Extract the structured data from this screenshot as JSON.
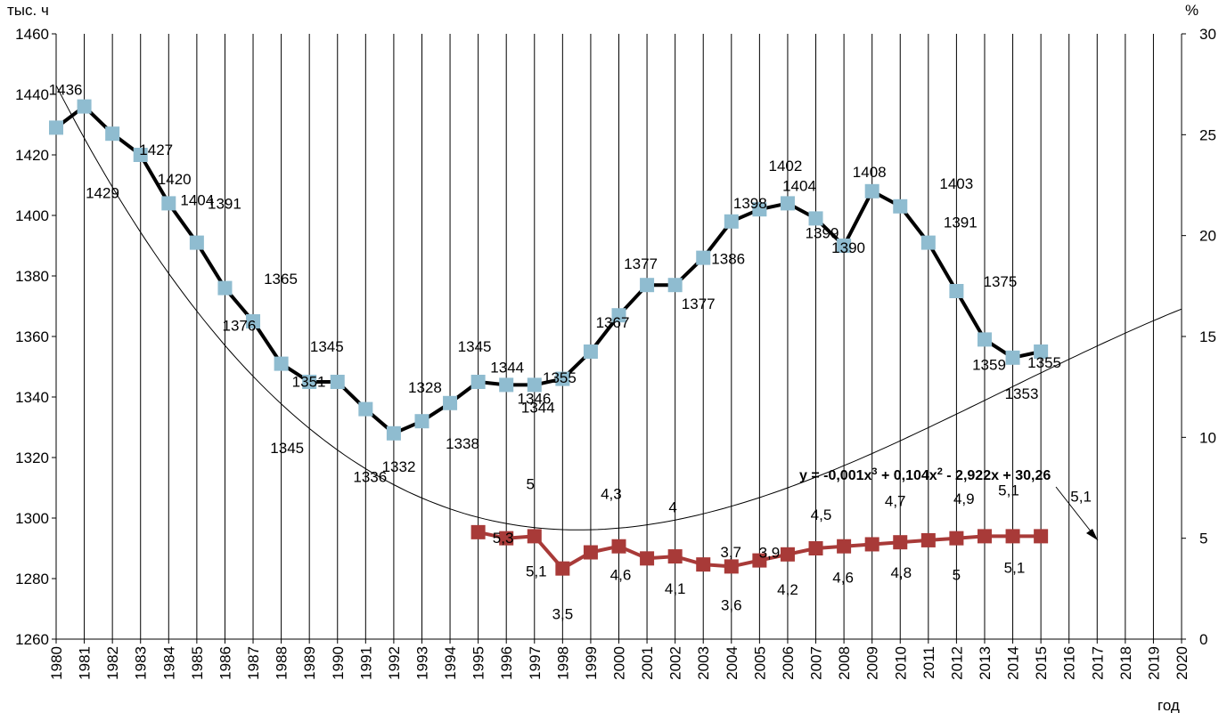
{
  "chart_data": {
    "type": "line",
    "y_left_unit": "тыс. ч",
    "y_right_unit": "%",
    "x_unit": "год",
    "x_range": [
      1980,
      2020
    ],
    "x_ticks": [
      1980,
      1981,
      1982,
      1983,
      1984,
      1985,
      1986,
      1987,
      1988,
      1989,
      1990,
      1991,
      1992,
      1993,
      1994,
      1995,
      1996,
      1997,
      1998,
      1999,
      2000,
      2001,
      2002,
      2003,
      2004,
      2005,
      2006,
      2007,
      2008,
      2009,
      2010,
      2011,
      2012,
      2013,
      2014,
      2015,
      2016,
      2017,
      2018,
      2019,
      2020
    ],
    "y_left_range": [
      1260,
      1460
    ],
    "y_left_ticks": [
      1260,
      1280,
      1300,
      1320,
      1340,
      1360,
      1380,
      1400,
      1420,
      1440,
      1460
    ],
    "y_right_range": [
      0,
      30
    ],
    "y_right_ticks": [
      0,
      5,
      10,
      15,
      20,
      25,
      30
    ],
    "grid": "vertical",
    "series": [
      {
        "axis": "left",
        "color": "#000000",
        "marker_color": "#8fbcd0",
        "x": [
          1980,
          1981,
          1982,
          1983,
          1984,
          1985,
          1986,
          1987,
          1988,
          1989,
          1990,
          1991,
          1992,
          1993,
          1994,
          1995,
          1996,
          1997,
          1998,
          1999,
          2000,
          2001,
          2002,
          2003,
          2004,
          2005,
          2006,
          2007,
          2008,
          2009,
          2010,
          2011,
          2012,
          2013,
          2014,
          2015
        ],
        "values": [
          1429,
          1436,
          1427,
          1420,
          1404,
          1391,
          1376,
          1365,
          1351,
          1345,
          1345,
          1336,
          1328,
          1332,
          1338,
          1345,
          1344,
          1344,
          1346,
          1355,
          1367,
          1377,
          1377,
          1386,
          1398,
          1402,
          1404,
          1399,
          1390,
          1408,
          1403,
          1391,
          1375,
          1359,
          1353,
          1355
        ]
      },
      {
        "axis": "right",
        "color": "#a83a38",
        "marker_color": "#a83a38",
        "x": [
          1995,
          1996,
          1997,
          1998,
          1999,
          2000,
          2001,
          2002,
          2003,
          2004,
          2005,
          2006,
          2007,
          2008,
          2009,
          2010,
          2011,
          2012,
          2013,
          2014,
          2015
        ],
        "values": [
          5.3,
          5.0,
          5.1,
          3.5,
          4.3,
          4.6,
          4.0,
          4.1,
          3.7,
          3.6,
          3.9,
          4.2,
          4.5,
          4.6,
          4.7,
          4.8,
          4.9,
          5.0,
          5.1,
          5.1,
          5.1
        ]
      }
    ],
    "trendline": {
      "axis": "right",
      "type": "polynomial-3",
      "equation_parts": [
        "y = -0,001x",
        "3",
        " + 0,104x",
        "2",
        " - 2,922x + 30,26"
      ]
    },
    "data_labels": [
      {
        "text": "1436",
        "x": 1981,
        "y": 1436
      },
      {
        "text": "1429",
        "x": 1980,
        "y": 1429
      },
      {
        "text": "1427",
        "x": 1982,
        "y": 1427
      },
      {
        "text": "1420",
        "x": 1983,
        "y": 1420
      },
      {
        "text": "1404",
        "x": 1984,
        "y": 1404
      },
      {
        "text": "1391",
        "x": 1985,
        "y": 1391
      },
      {
        "text": "1376",
        "x": 1986,
        "y": 1376
      },
      {
        "text": "1365",
        "x": 1987,
        "y": 1365
      },
      {
        "text": "1351",
        "x": 1988,
        "y": 1351
      },
      {
        "text": "1345",
        "x": 1989,
        "y": 1345
      },
      {
        "text": "1345",
        "x": 1990,
        "y": 1345
      },
      {
        "text": "1336",
        "x": 1991,
        "y": 1336
      },
      {
        "text": "1328",
        "x": 1992,
        "y": 1328
      },
      {
        "text": "1332",
        "x": 1993,
        "y": 1332
      },
      {
        "text": "1338",
        "x": 1994,
        "y": 1338
      },
      {
        "text": "1345",
        "x": 1995,
        "y": 1345
      },
      {
        "text": "1344",
        "x": 1996,
        "y": 1344
      },
      {
        "text": "1344",
        "x": 1997,
        "y": 1344
      },
      {
        "text": "1346",
        "x": 1998,
        "y": 1346
      },
      {
        "text": "1355",
        "x": 1999,
        "y": 1355
      },
      {
        "text": "1367",
        "x": 2000,
        "y": 1367
      },
      {
        "text": "1377",
        "x": 2001,
        "y": 1377
      },
      {
        "text": "1377",
        "x": 2002,
        "y": 1377
      },
      {
        "text": "1386",
        "x": 2003,
        "y": 1386
      },
      {
        "text": "1398",
        "x": 2004,
        "y": 1398
      },
      {
        "text": "1404",
        "x": 2006,
        "y": 1404
      },
      {
        "text": "1402",
        "x": 2005,
        "y": 1402
      },
      {
        "text": "1408",
        "x": 2009,
        "y": 1408
      },
      {
        "text": "1399",
        "x": 2007,
        "y": 1399
      },
      {
        "text": "1390",
        "x": 2008,
        "y": 1390
      },
      {
        "text": "1403",
        "x": 2010,
        "y": 1403
      },
      {
        "text": "1391",
        "x": 2011,
        "y": 1391
      },
      {
        "text": "1375",
        "x": 2012,
        "y": 1375
      },
      {
        "text": "1359",
        "x": 2013,
        "y": 1359
      },
      {
        "text": "1353",
        "x": 2014,
        "y": 1353
      },
      {
        "text": "1355",
        "x": 2015,
        "y": 1355
      },
      {
        "text": "5",
        "x": 1996,
        "y": 5.0
      },
      {
        "text": "5,3",
        "x": 1995,
        "y": 5.3
      },
      {
        "text": "5,1",
        "x": 1997,
        "y": 5.1
      },
      {
        "text": "3,5",
        "x": 1998,
        "y": 3.5
      },
      {
        "text": "4,3",
        "x": 1999,
        "y": 4.3
      },
      {
        "text": "4,6",
        "x": 2000,
        "y": 4.6
      },
      {
        "text": "4",
        "x": 2001,
        "y": 4.0
      },
      {
        "text": "4,1",
        "x": 2002,
        "y": 4.1
      },
      {
        "text": "3,7",
        "x": 2003,
        "y": 3.7
      },
      {
        "text": "3,6",
        "x": 2004,
        "y": 3.6
      },
      {
        "text": "3,9",
        "x": 2005,
        "y": 3.9
      },
      {
        "text": "4,2",
        "x": 2006,
        "y": 4.2
      },
      {
        "text": "4,5",
        "x": 2007,
        "y": 4.5
      },
      {
        "text": "4,6",
        "x": 2008,
        "y": 4.6
      },
      {
        "text": "4,7",
        "x": 2009,
        "y": 4.7
      },
      {
        "text": "4,8",
        "x": 2010,
        "y": 4.8
      },
      {
        "text": "4,9",
        "x": 2011,
        "y": 4.9
      },
      {
        "text": "5",
        "x": 2012,
        "y": 5.0
      },
      {
        "text": "5,1",
        "x": 2013,
        "y": 5.1
      },
      {
        "text": "5,1",
        "x": 2014,
        "y": 5.1
      },
      {
        "text": "5,1",
        "x": 2015,
        "y": 5.1
      }
    ]
  }
}
